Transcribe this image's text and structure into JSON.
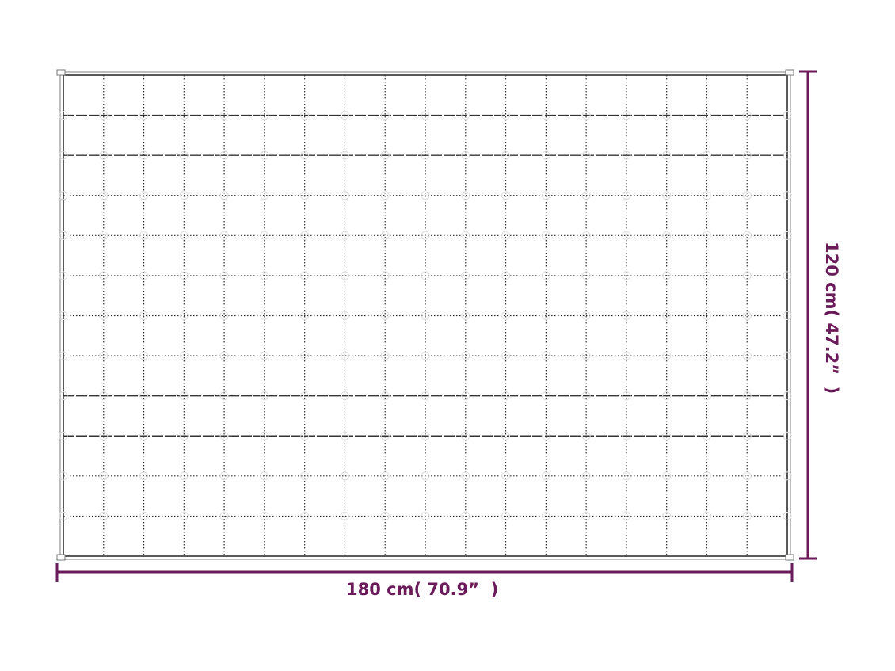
{
  "diagram": {
    "subject": "quilted blanket grid",
    "columns": 18,
    "rows": 12,
    "accent_color": "#6b1a5a",
    "width_label": "180 cm( 70.9”  )",
    "height_label": "120 cm( 47.2”  )"
  }
}
